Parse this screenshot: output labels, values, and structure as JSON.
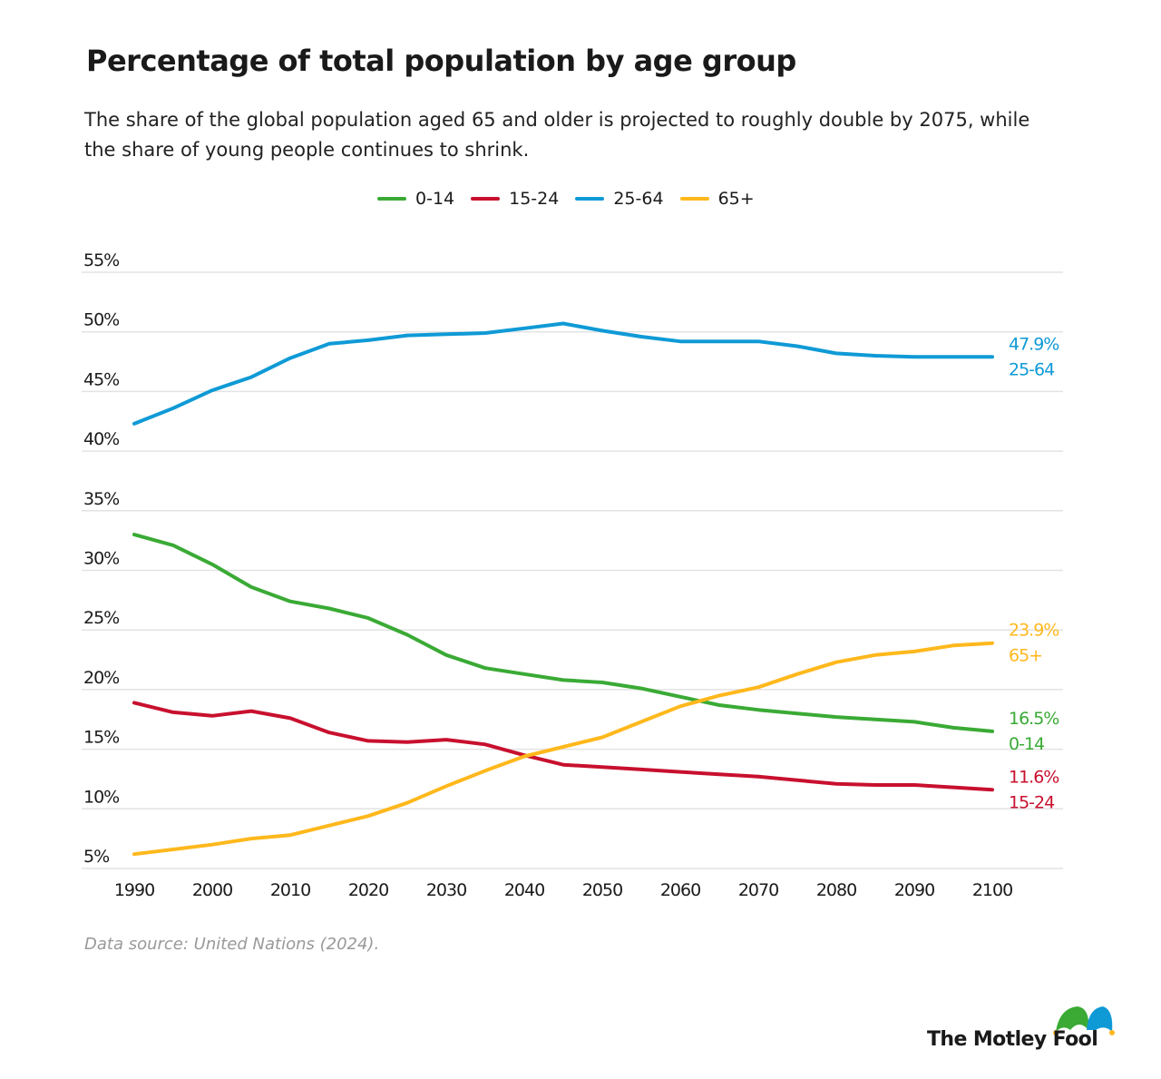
{
  "header": {
    "title": "Percentage of total population by age group",
    "subtitle": "The share of the global population aged 65 and older  is projected to roughly double by 2075, while the share of young people continues to shrink."
  },
  "footer": {
    "source": "Data source: United Nations (2024).",
    "logo": "The Motley Fool"
  },
  "chart_data": {
    "type": "line",
    "title": "Percentage of total population by age group",
    "xlabel": "",
    "ylabel": "",
    "xlim": [
      1990,
      2100
    ],
    "ylim": [
      5,
      55
    ],
    "grid": true,
    "legend_position": "top",
    "x_ticks": [
      "1990",
      "2000",
      "2010",
      "2020",
      "2030",
      "2040",
      "2050",
      "2060",
      "2070",
      "2080",
      "2090",
      "2100"
    ],
    "y_ticks": [
      "5%",
      "10%",
      "15%",
      "20%",
      "25%",
      "30%",
      "35%",
      "40%",
      "45%",
      "50%",
      "55%"
    ],
    "x": [
      1990,
      1995,
      2000,
      2005,
      2010,
      2015,
      2020,
      2025,
      2030,
      2035,
      2040,
      2045,
      2050,
      2055,
      2060,
      2065,
      2070,
      2075,
      2080,
      2085,
      2090,
      2095,
      2100
    ],
    "series": [
      {
        "name": "0-14",
        "color": "#3aaa35",
        "end_label": "16.5%",
        "values": [
          33.0,
          32.1,
          30.5,
          28.6,
          27.4,
          26.8,
          26.0,
          24.6,
          22.9,
          21.8,
          21.3,
          20.8,
          20.6,
          20.1,
          19.4,
          18.7,
          18.3,
          18.0,
          17.7,
          17.5,
          17.3,
          16.8,
          16.5
        ]
      },
      {
        "name": "15-24",
        "color": "#c8102e",
        "end_label": "11.6%",
        "values": [
          18.9,
          18.1,
          17.8,
          18.2,
          17.6,
          16.4,
          15.7,
          15.6,
          15.8,
          15.4,
          14.5,
          13.7,
          13.5,
          13.3,
          13.1,
          12.9,
          12.7,
          12.4,
          12.1,
          12.0,
          12.0,
          11.8,
          11.6
        ]
      },
      {
        "name": "25-64",
        "color": "#0f9ad6",
        "end_label": "47.9%",
        "values": [
          42.3,
          43.6,
          45.1,
          46.2,
          47.8,
          49.0,
          49.3,
          49.7,
          49.8,
          49.9,
          50.3,
          50.7,
          50.1,
          49.6,
          49.2,
          49.2,
          49.2,
          48.8,
          48.2,
          48.0,
          47.9,
          47.9,
          47.9
        ]
      },
      {
        "name": "65+",
        "color": "#ffb81c",
        "end_label": "23.9%",
        "values": [
          6.2,
          6.6,
          7.0,
          7.5,
          7.8,
          8.6,
          9.4,
          10.5,
          11.9,
          13.2,
          14.4,
          15.2,
          16.0,
          17.3,
          18.6,
          19.5,
          20.2,
          21.3,
          22.3,
          22.9,
          23.2,
          23.7,
          23.9
        ]
      }
    ]
  }
}
